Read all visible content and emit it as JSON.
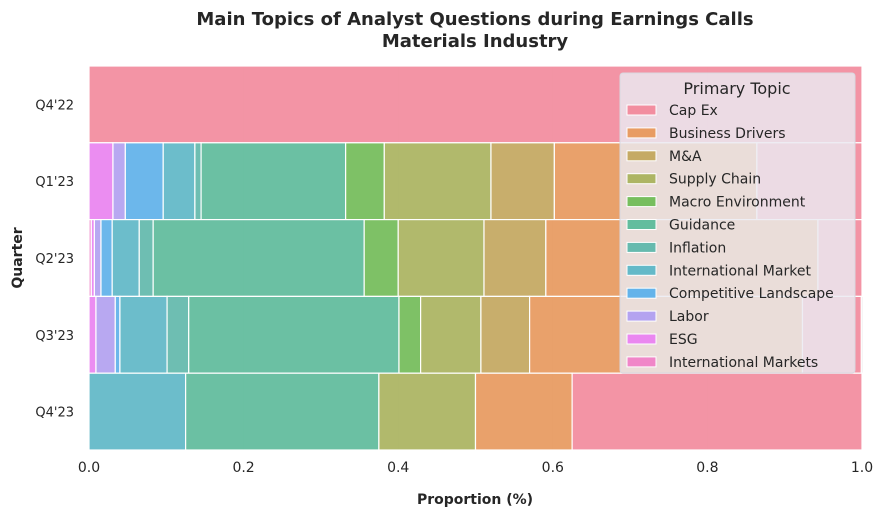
{
  "chart_data": {
    "type": "bar",
    "orientation": "horizontal",
    "stacked": "fill",
    "title": "Main Topics of Analyst Questions during Earnings Calls",
    "subtitle": "Materials Industry",
    "xlabel": "Proportion (%)",
    "ylabel": "Quarter",
    "xlim": [
      0,
      1
    ],
    "xticks": [
      "0.0",
      "0.2",
      "0.4",
      "0.6",
      "0.8",
      "1.0"
    ],
    "grid": true,
    "categories": [
      "Q4'22",
      "Q1'23",
      "Q2'23",
      "Q3'23",
      "Q4'23"
    ],
    "legend": {
      "title": "Primary Topic",
      "placement": "top-right"
    },
    "series": [
      {
        "name": "Cap Ex",
        "color": "#f28ea0",
        "values": [
          1.0,
          0.136,
          0.057,
          0.076,
          0.375
        ]
      },
      {
        "name": "Business Drivers",
        "color": "#e89c63",
        "values": [
          0,
          0.262,
          0.352,
          0.353,
          0.125
        ]
      },
      {
        "name": "M&A",
        "color": "#c5aa64",
        "values": [
          0,
          0.082,
          0.08,
          0.063,
          0
        ]
      },
      {
        "name": "Supply Chain",
        "color": "#adb564",
        "values": [
          0,
          0.138,
          0.111,
          0.078,
          0.125
        ]
      },
      {
        "name": "Macro Environment",
        "color": "#77be5e",
        "values": [
          0,
          0.05,
          0.044,
          0.028,
          0
        ]
      },
      {
        "name": "Guidance",
        "color": "#63bd9e",
        "values": [
          0,
          0.187,
          0.273,
          0.272,
          0.25
        ]
      },
      {
        "name": "Inflation",
        "color": "#66baae",
        "values": [
          0,
          0.008,
          0.018,
          0.028,
          0
        ]
      },
      {
        "name": "International Market",
        "color": "#64b9c8",
        "values": [
          0,
          0.041,
          0.035,
          0.061,
          0.125
        ]
      },
      {
        "name": "Competitive Landscape",
        "color": "#64b3ea",
        "values": [
          0,
          0.049,
          0.0145,
          0.006,
          0
        ]
      },
      {
        "name": "Labor",
        "color": "#b4a3f0",
        "values": [
          0,
          0.016,
          0.0085,
          0.025,
          0
        ]
      },
      {
        "name": "ESG",
        "color": "#ea87f0",
        "values": [
          0,
          0.031,
          0.004,
          0.009,
          0
        ]
      },
      {
        "name": "International Markets",
        "color": "#f086c8",
        "values": [
          0,
          0,
          0.003,
          0,
          0
        ]
      }
    ]
  }
}
